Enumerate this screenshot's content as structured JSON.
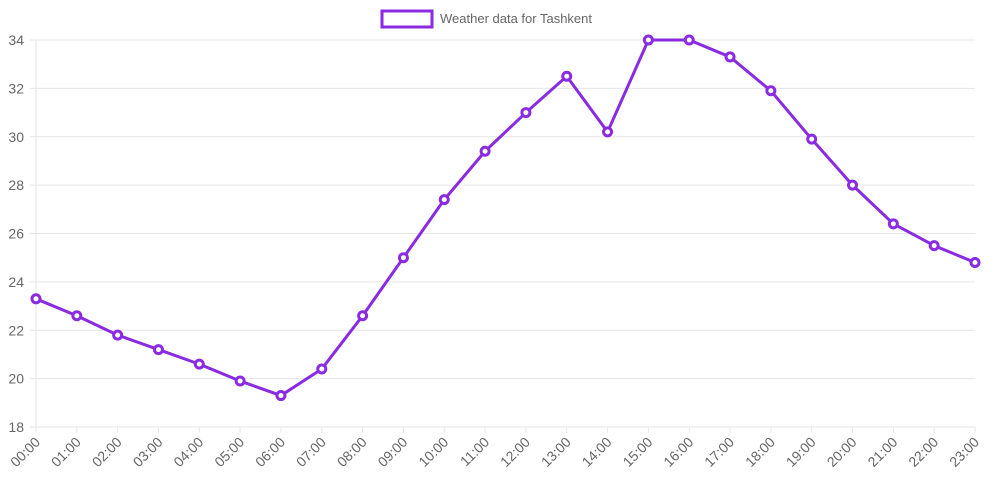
{
  "colors": {
    "series": "#8a2be2",
    "grid": "#e6e6e6",
    "axis_text": "#666666",
    "point_fill": "#ffffff"
  },
  "chart_data": {
    "type": "line",
    "title": "",
    "xlabel": "",
    "ylabel": "",
    "x": [
      "00:00",
      "01:00",
      "02:00",
      "03:00",
      "04:00",
      "05:00",
      "06:00",
      "07:00",
      "08:00",
      "09:00",
      "10:00",
      "11:00",
      "12:00",
      "13:00",
      "14:00",
      "15:00",
      "16:00",
      "17:00",
      "18:00",
      "19:00",
      "20:00",
      "21:00",
      "22:00",
      "23:00"
    ],
    "series": [
      {
        "name": "Weather data for Tashkent",
        "values": [
          23.3,
          22.6,
          21.8,
          21.2,
          20.6,
          19.9,
          19.3,
          20.4,
          22.6,
          25.0,
          27.4,
          29.4,
          31.0,
          32.5,
          30.2,
          34.0,
          34.0,
          33.3,
          31.9,
          29.9,
          28.0,
          26.4,
          25.5,
          24.8
        ],
        "color": "#8a2be2"
      }
    ],
    "ylim": [
      18,
      34
    ],
    "yticks": [
      18,
      20,
      22,
      24,
      26,
      28,
      30,
      32,
      34
    ],
    "grid": true,
    "legend_position": "top"
  }
}
